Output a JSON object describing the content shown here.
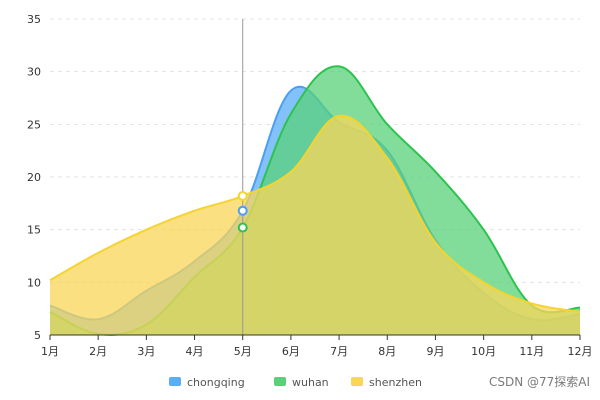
{
  "chart_data": {
    "type": "area",
    "categories": [
      "1月",
      "2月",
      "3月",
      "4月",
      "5月",
      "6月",
      "7月",
      "8月",
      "9月",
      "10月",
      "11月",
      "12月"
    ],
    "ylim": [
      5,
      35
    ],
    "yticks": [
      5,
      10,
      15,
      20,
      25,
      30,
      35
    ],
    "grid": true,
    "legend_position": "bottom",
    "tooltip_category": "5月",
    "series": [
      {
        "name": "chongqing",
        "color": "#4a9ff5",
        "fill": "#5aaef5",
        "values": [
          7.8,
          6.5,
          9.2,
          12.0,
          16.8,
          28.2,
          25.2,
          22.5,
          14.0,
          9.0,
          6.5,
          7.0
        ]
      },
      {
        "name": "wuhan",
        "color": "#2ec24f",
        "fill": "#58d17a",
        "values": [
          7.2,
          5.1,
          6.0,
          10.5,
          15.2,
          26.0,
          30.5,
          25.0,
          20.5,
          15.0,
          7.8,
          7.6
        ]
      },
      {
        "name": "shenzhen",
        "color": "#f5d430",
        "fill": "#f9d658",
        "values": [
          10.2,
          12.8,
          15.0,
          16.8,
          18.2,
          20.5,
          25.8,
          21.8,
          13.8,
          10.0,
          8.0,
          7.2
        ]
      }
    ]
  },
  "watermark": "CSDN @77探索AI"
}
